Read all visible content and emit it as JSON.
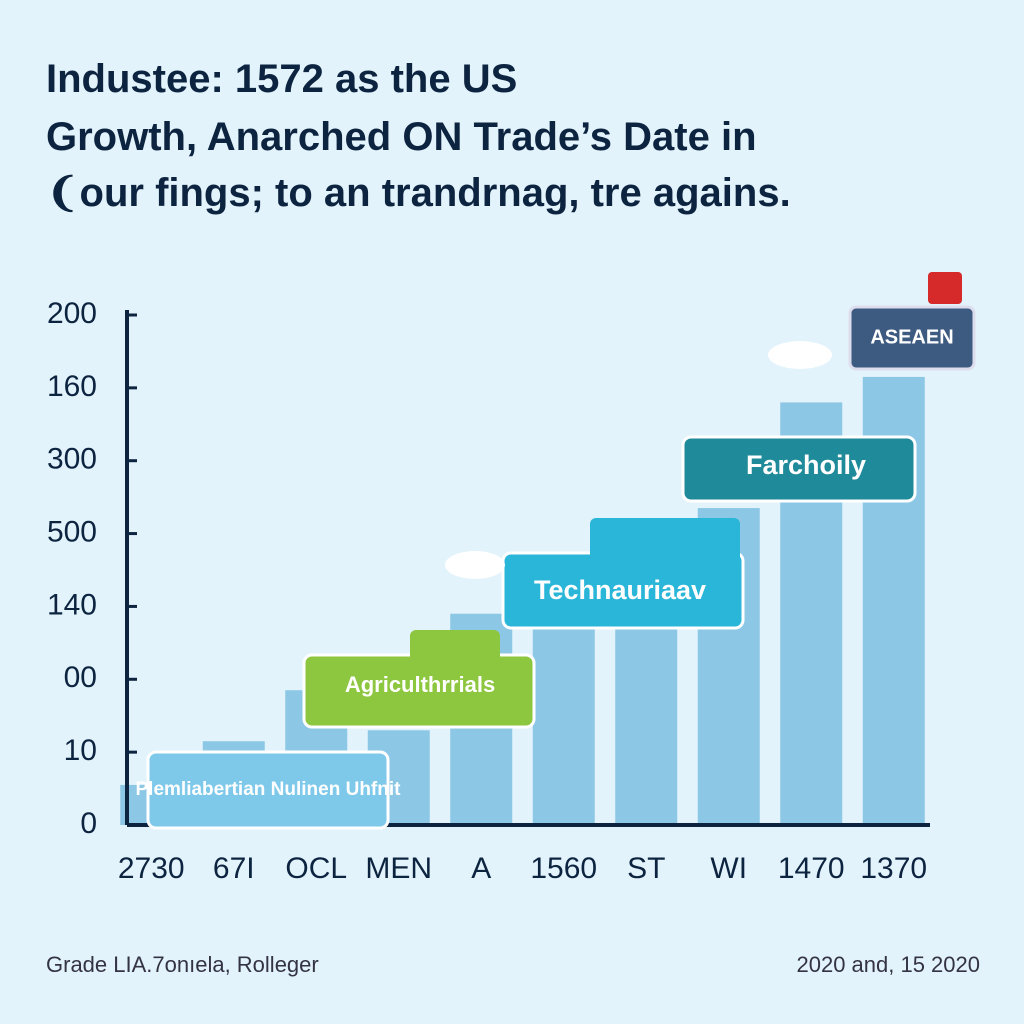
{
  "chart_data": {
    "type": "bar",
    "title": [
      "Industee: 1572 as the US",
      "Growth, Anarched ON Trade’s Date in",
      "❨our fings; to an trandrnag, tre agains."
    ],
    "categories": [
      "2730",
      "67I",
      "OCL",
      "MEN",
      "A",
      "1560",
      "ST",
      "WI",
      "1470",
      "1370"
    ],
    "values": [
      0.55,
      1.15,
      1.85,
      1.3,
      2.9,
      2.8,
      3.05,
      4.35,
      5.8,
      6.15
    ],
    "color": "#8cc8e6",
    "ylim": [
      0,
      7
    ],
    "yticks": [
      0,
      {
        "value": 1,
        "label": "10"
      },
      {
        "value": 2,
        "label": "00"
      },
      {
        "value": 3,
        "label": "140"
      },
      {
        "value": 4,
        "label": "500"
      },
      {
        "value": 5,
        "label": "300"
      },
      {
        "value": 6,
        "label": "160"
      },
      {
        "value": 7,
        "label": "200"
      }
    ],
    "grid": false,
    "annotations": [
      "Plemliabertian Nulinen Uhfnit",
      "Agriculthrrials",
      "Technauriaav",
      "Farchoily",
      "ASEAEN"
    ],
    "footer_left": "Grade LIA.7onıela, Rolleger",
    "footer_right": "2020 and, 15 2020"
  }
}
